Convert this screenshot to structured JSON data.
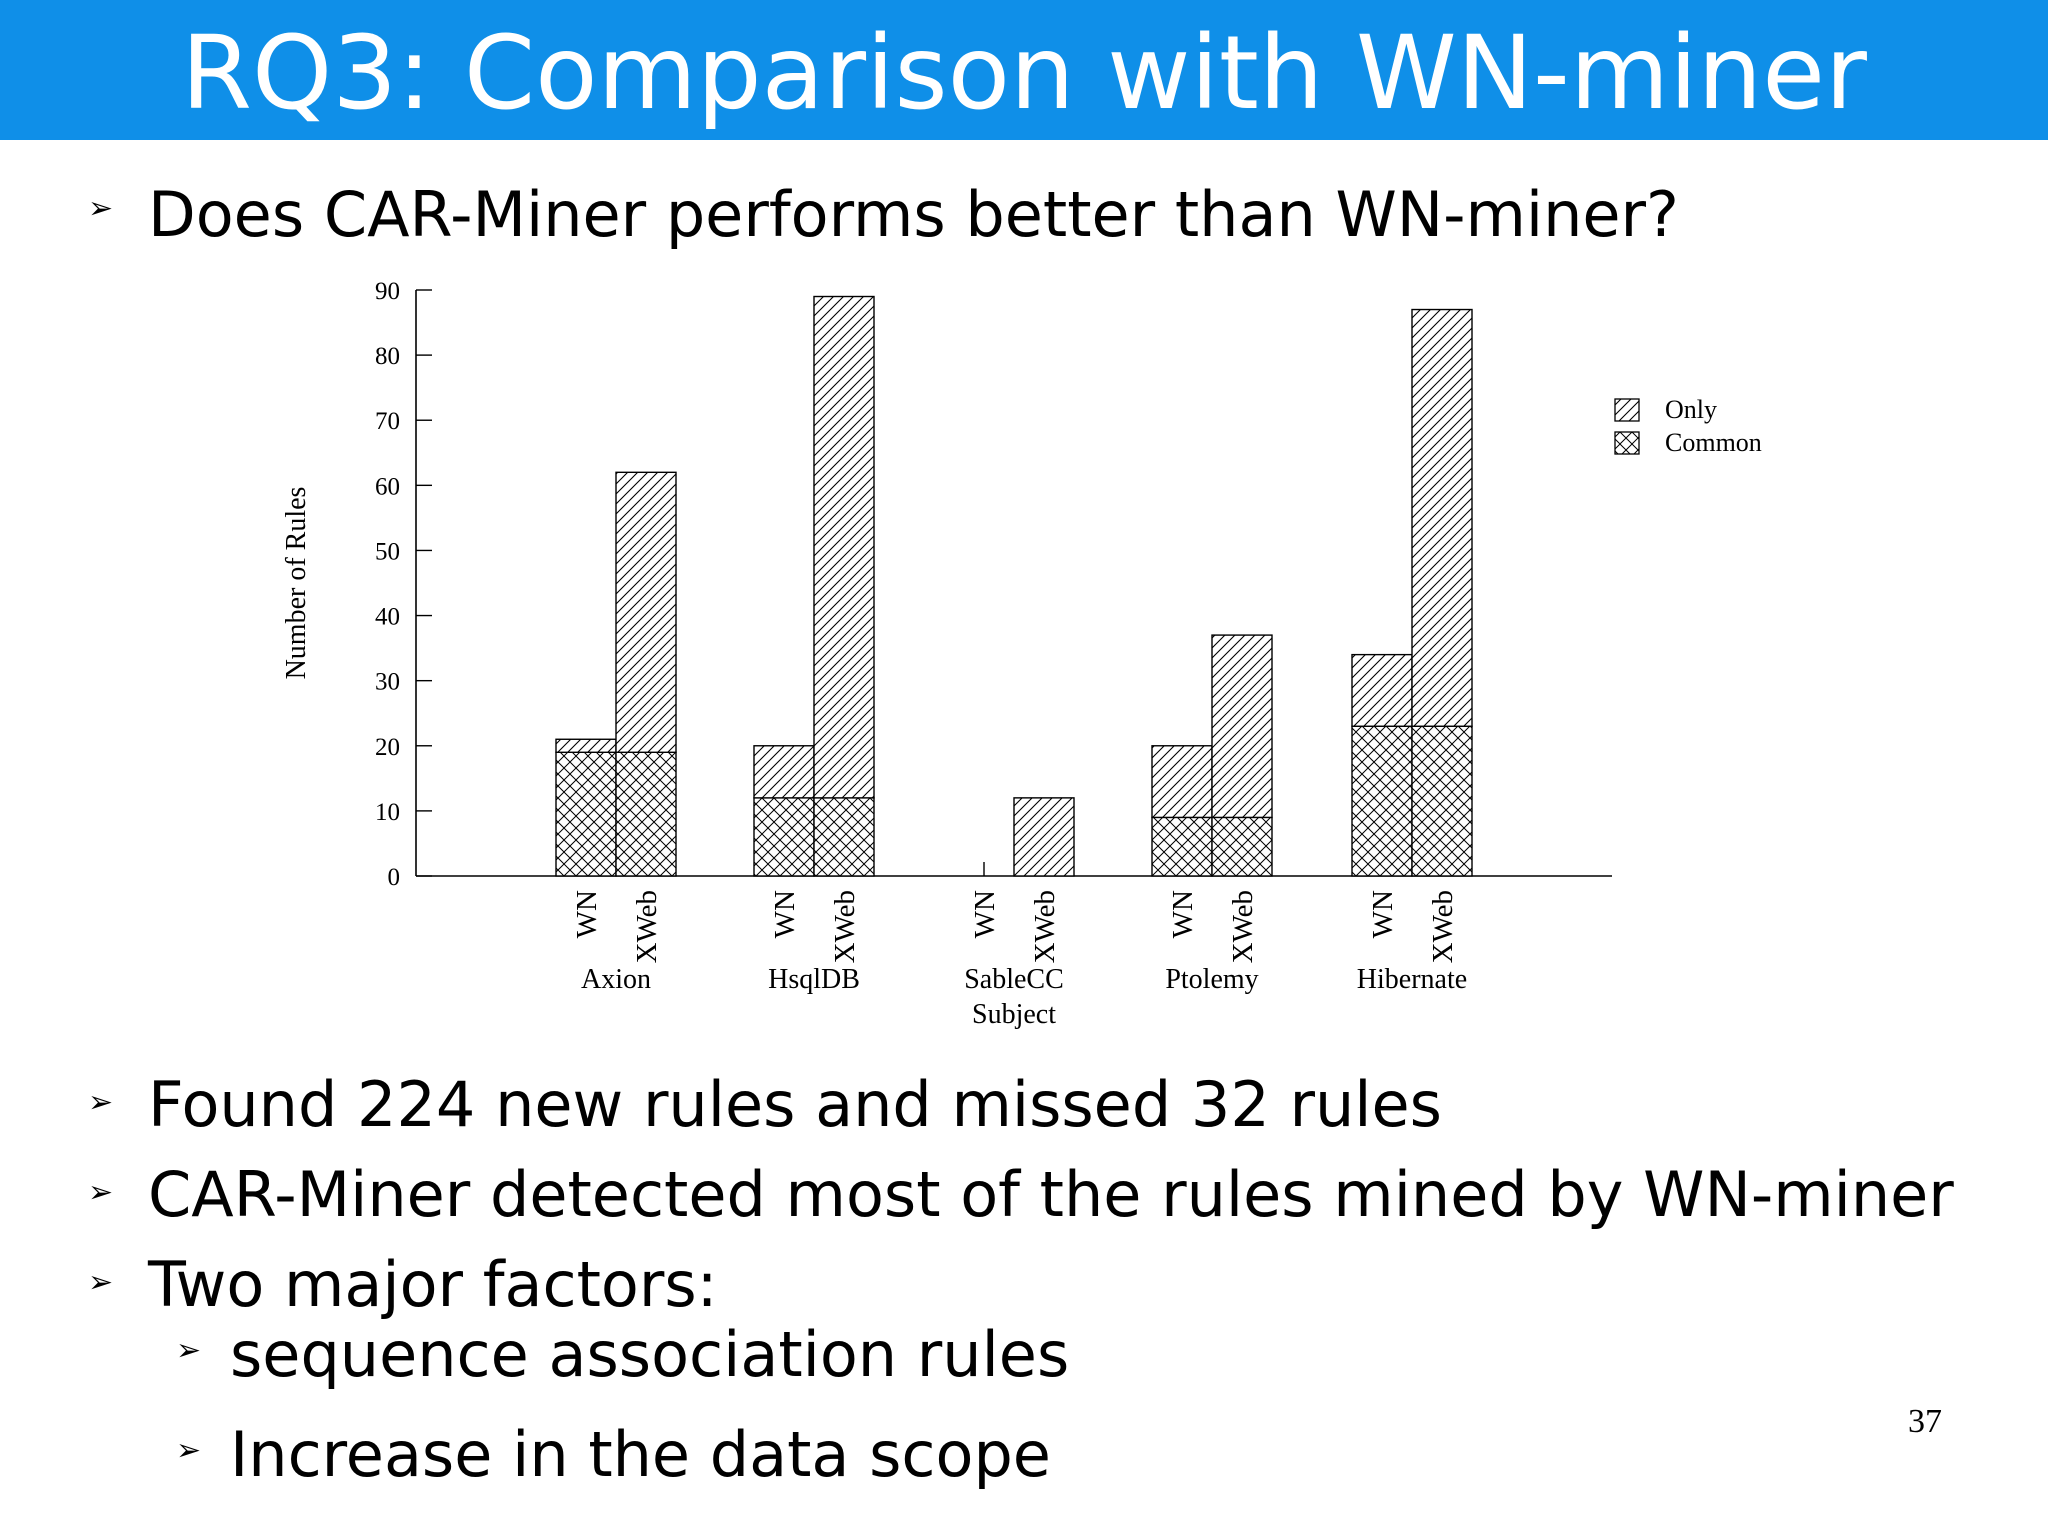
{
  "slide": {
    "title": "RQ3: Comparison with WN-miner",
    "question": "Does CAR-Miner performs better than WN-miner?",
    "bullets": [
      "Found 224 new rules and missed 32 rules",
      "CAR-Miner detected most of the rules mined by WN-miner",
      "Two major factors:"
    ],
    "sub_bullets": [
      "sequence association rules",
      "Increase in the data scope"
    ],
    "page_number": "37",
    "title_bar_color": "#0f8fe8"
  },
  "chart_data": {
    "type": "bar",
    "stacked": true,
    "groups": [
      "Axion",
      "HsqlDB",
      "SableCC",
      "Ptolemy",
      "Hibernate"
    ],
    "bar_labels": [
      "WN",
      "XWeb"
    ],
    "xlabel": "Subject",
    "ylabel": "Number of Rules",
    "ylim": [
      0,
      90
    ],
    "yticks": [
      "0",
      "10",
      "20",
      "30",
      "40",
      "50",
      "60",
      "70",
      "80",
      "90"
    ],
    "series": [
      {
        "name": "Common",
        "pattern": "crosshatch",
        "values": {
          "WN": [
            19,
            12,
            0,
            9,
            23
          ],
          "XWeb": [
            19,
            12,
            0,
            9,
            23
          ]
        }
      },
      {
        "name": "Only",
        "pattern": "diagonal",
        "values": {
          "WN": [
            2,
            8,
            0,
            11,
            11
          ],
          "XWeb": [
            43,
            77,
            12,
            28,
            64
          ]
        }
      }
    ],
    "legend_position": "top-right",
    "legend": [
      "Only",
      "Common"
    ],
    "grid": false
  }
}
